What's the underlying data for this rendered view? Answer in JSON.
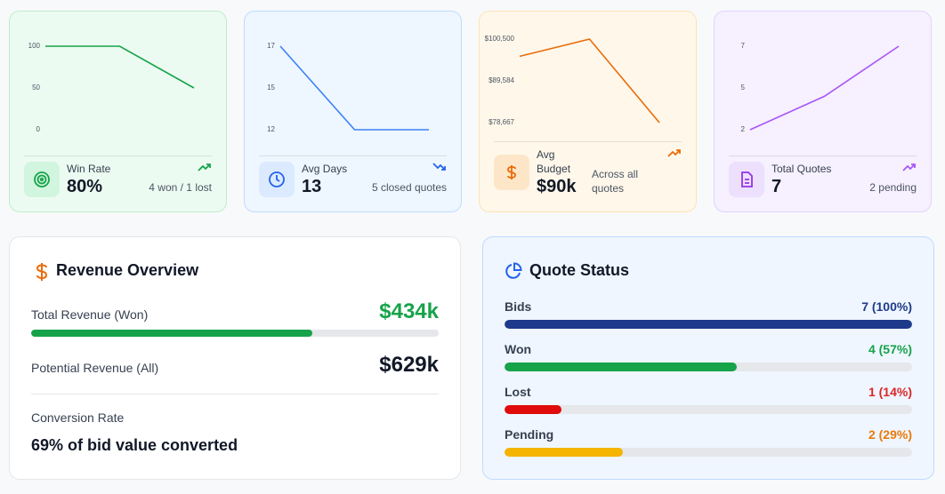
{
  "cards": [
    {
      "label": "Win Rate",
      "value": "80%",
      "note": "4 won / 1 lost",
      "chart": {
        "type": "line",
        "color": "#16a34a",
        "values": [
          100,
          100,
          50
        ],
        "ylim": [
          0,
          100
        ],
        "yticks": [
          0,
          50,
          100
        ]
      }
    },
    {
      "label": "Avg Days",
      "value": "13",
      "note": "5 closed quotes",
      "chart": {
        "type": "line",
        "color": "#3b82f6",
        "values": [
          17,
          12,
          12
        ],
        "ylim": [
          12,
          17
        ],
        "yticks": [
          12,
          {
            "value": 14.5,
            "label": "15"
          },
          17
        ]
      }
    },
    {
      "label": "Avg Budget",
      "value": "$90k",
      "note": "Across all quotes",
      "chart": {
        "type": "line",
        "color": "#ea6c0a",
        "values": [
          96000,
          100500,
          78667
        ],
        "ylim": [
          78667,
          100500
        ],
        "yticks": [
          {
            "value": 78667,
            "label": "$78,667"
          },
          {
            "value": 89584,
            "label": "$89,584"
          },
          {
            "value": 100500,
            "label": "$100,500"
          }
        ]
      }
    },
    {
      "label": "Total Quotes",
      "value": "7",
      "note": "2 pending",
      "chart": {
        "type": "line",
        "color": "#a855f7",
        "values": [
          2,
          4,
          7
        ],
        "ylim": [
          2,
          7
        ],
        "yticks": [
          2,
          {
            "value": 4.5,
            "label": "5"
          },
          7
        ]
      }
    }
  ],
  "revenue": {
    "title": "Revenue Overview",
    "rows": [
      {
        "label": "Total Revenue (Won)",
        "value": "$434k",
        "bar_percent": 69,
        "color": "#16a34a"
      },
      {
        "label": "Potential Revenue (All)",
        "value": "$629k"
      }
    ],
    "conversion": {
      "label": "Conversion Rate",
      "text": "69% of bid value converted"
    }
  },
  "status": {
    "title": "Quote Status",
    "rows": [
      {
        "label": "Bids",
        "count": "7 (100%)",
        "percent": 100,
        "color": "#1e3a8a",
        "count_color": "#1e3a8a"
      },
      {
        "label": "Won",
        "count": "4 (57%)",
        "percent": 57,
        "color": "#16a34a",
        "count_color": "#16a34a"
      },
      {
        "label": "Lost",
        "count": "1 (14%)",
        "percent": 14,
        "color": "#e00b0b",
        "count_color": "#dc2626"
      },
      {
        "label": "Pending",
        "count": "2 (29%)",
        "percent": 29,
        "color": "#f5b400",
        "count_color": "#ea7a0c"
      }
    ]
  }
}
